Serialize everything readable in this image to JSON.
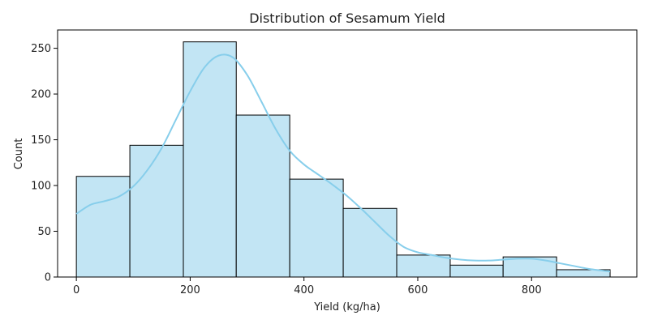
{
  "chart_data": {
    "type": "bar",
    "title": "Distribution of Sesamum Yield",
    "xlabel": "Yield (kg/ha)",
    "ylabel": "Count",
    "xlim": [
      -33,
      985
    ],
    "ylim": [
      0,
      270
    ],
    "x_ticks": [
      0,
      200,
      400,
      600,
      800
    ],
    "y_ticks": [
      0,
      50,
      100,
      150,
      200,
      250
    ],
    "bin_edges": [
      0,
      94,
      188,
      281,
      375,
      469,
      563,
      657,
      750,
      844,
      938
    ],
    "counts": [
      110,
      144,
      257,
      177,
      107,
      75,
      24,
      13,
      22,
      8
    ],
    "kde": {
      "x": [
        0,
        25,
        50,
        75,
        100,
        125,
        150,
        175,
        200,
        225,
        250,
        275,
        300,
        325,
        350,
        375,
        400,
        425,
        450,
        475,
        500,
        525,
        550,
        575,
        600,
        625,
        650,
        675,
        700,
        725,
        750,
        775,
        800,
        825,
        850,
        875,
        900,
        938
      ],
      "y": [
        69,
        79,
        83,
        88,
        99,
        117,
        141,
        172,
        203,
        229,
        242,
        240,
        221,
        192,
        162,
        138,
        123,
        112,
        101,
        89,
        75,
        60,
        45,
        33,
        27,
        24,
        21,
        19,
        18,
        18,
        19,
        20,
        20,
        18,
        15,
        12,
        9,
        6
      ]
    },
    "grid": false,
    "colors": {
      "bar_fill": "#c2e5f4",
      "bar_edge": "#000000",
      "kde_line": "#87ceeb"
    }
  }
}
